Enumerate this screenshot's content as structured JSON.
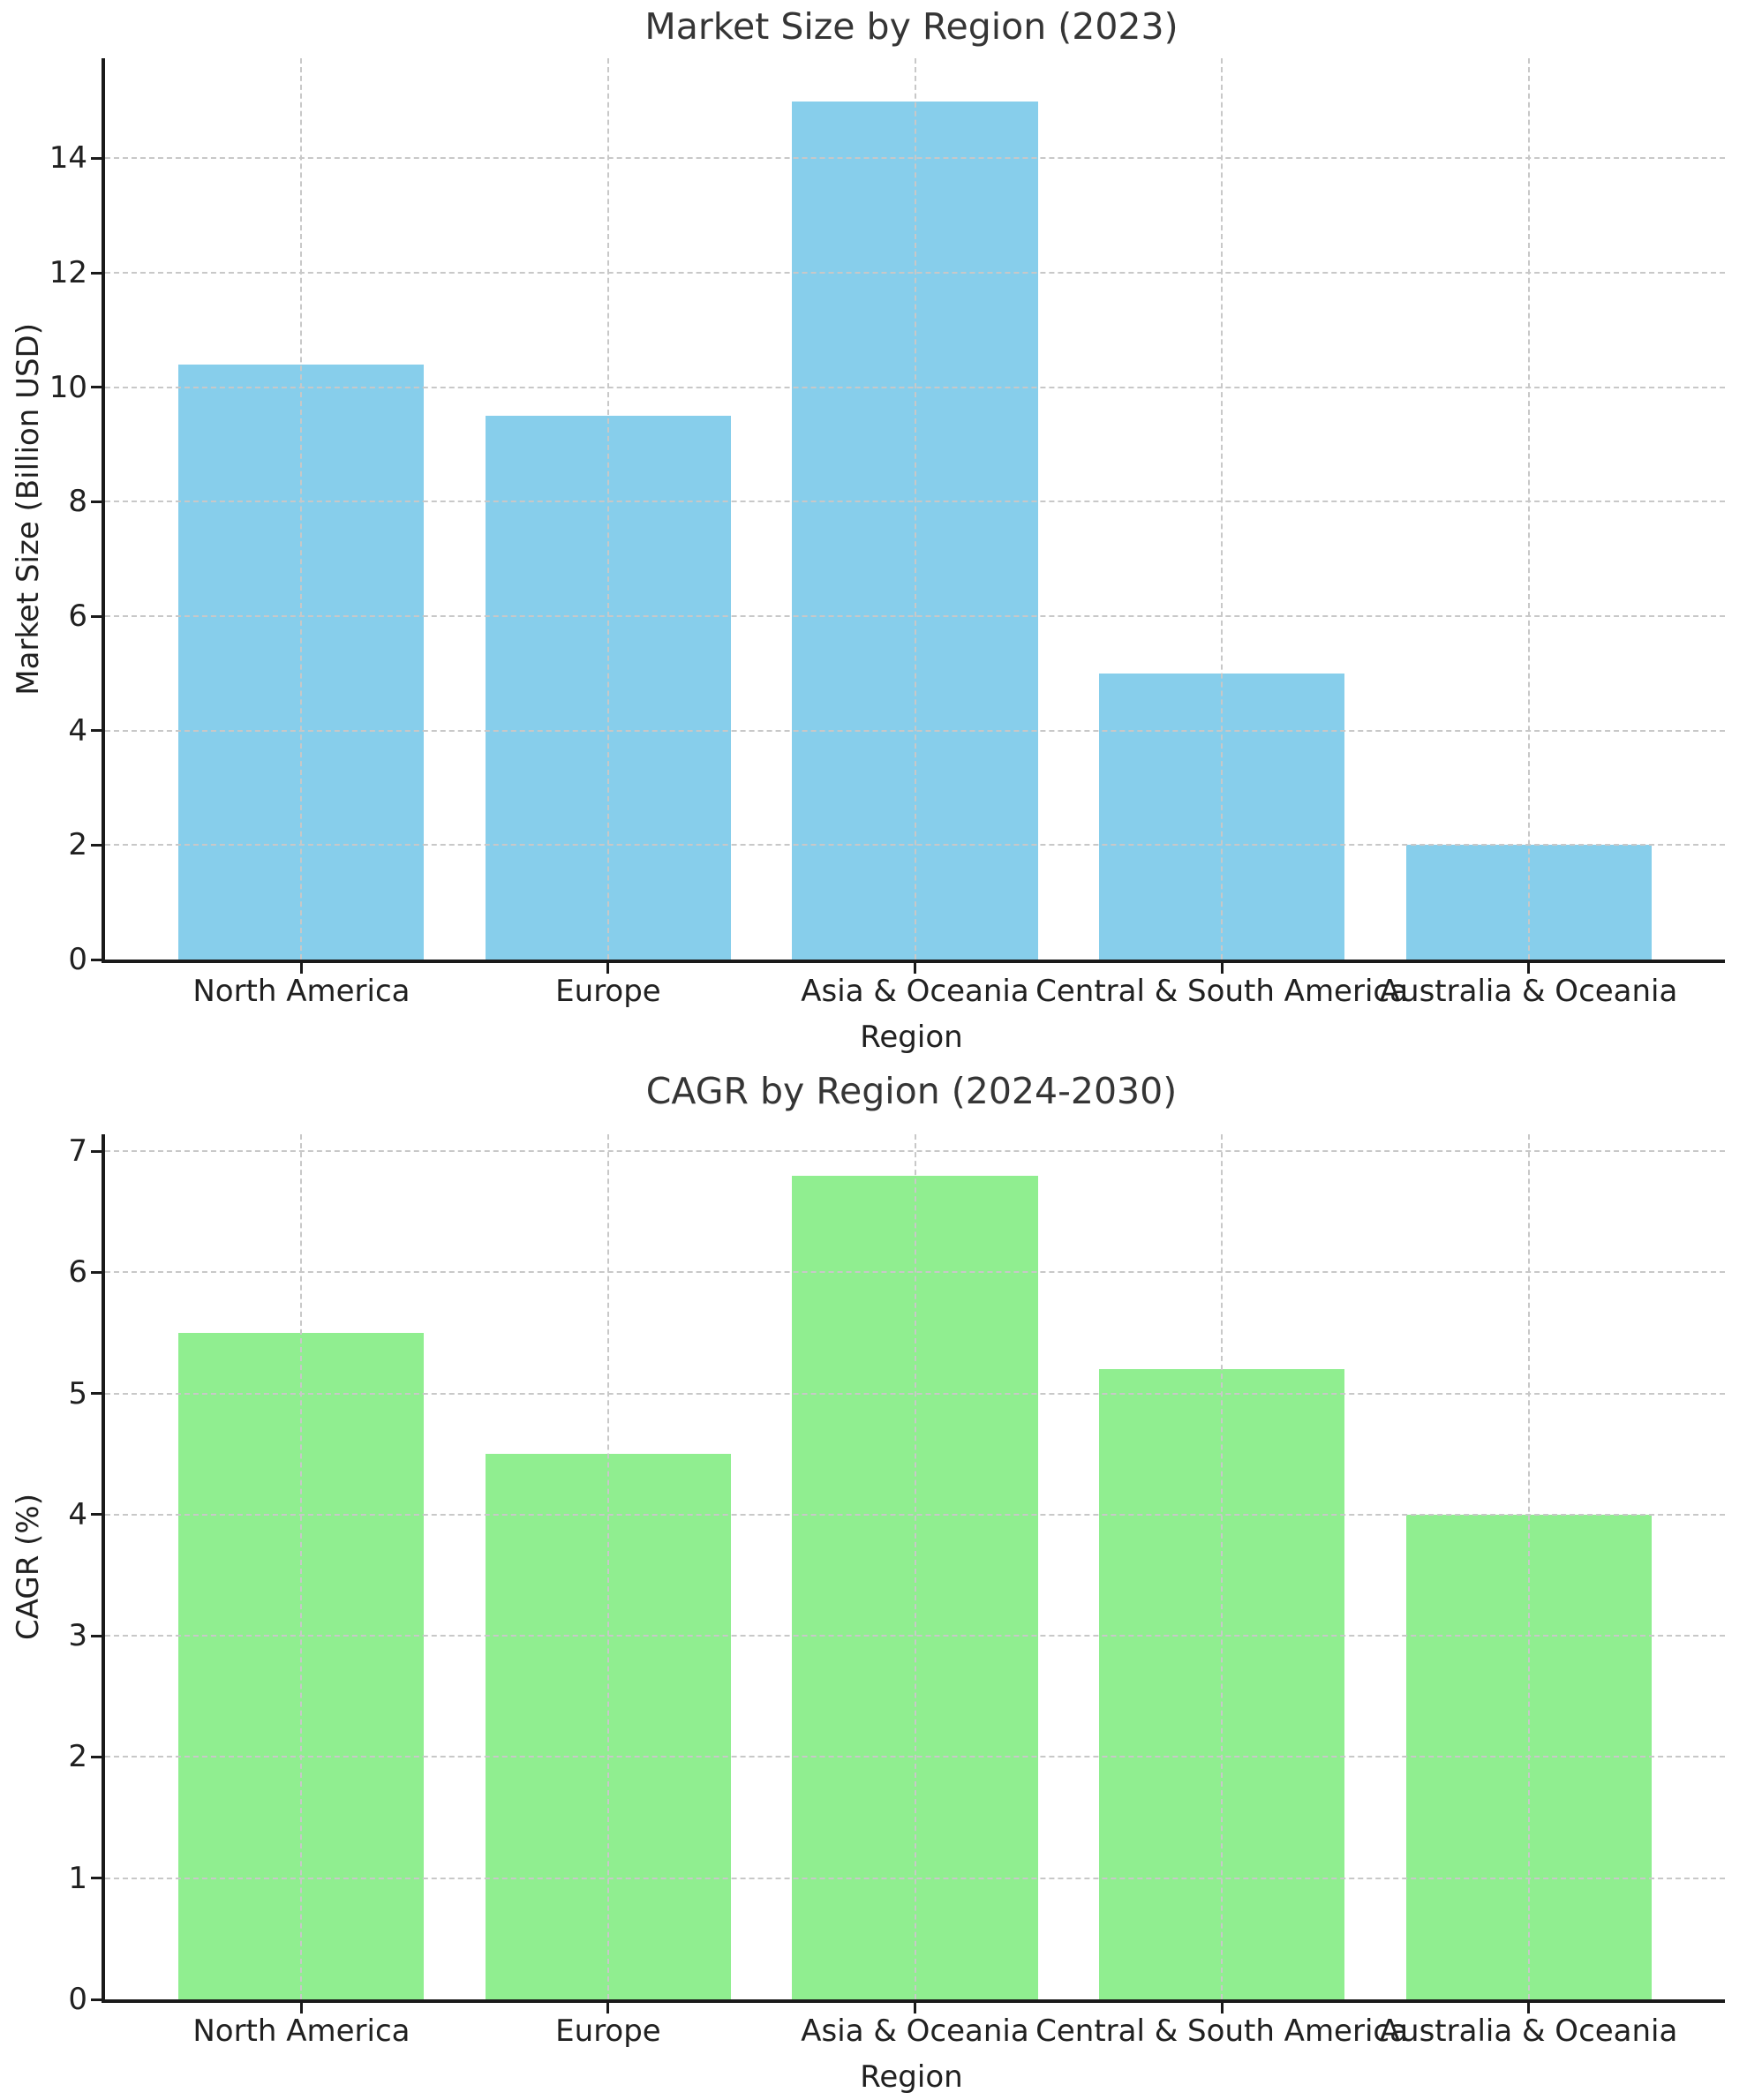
{
  "figure": {
    "background": "#ffffff"
  },
  "colors": {
    "grid": "#c8c8c8",
    "spine": "#1a1a1a",
    "text": "#202020",
    "title": "#353535"
  },
  "chart_data": [
    {
      "type": "bar",
      "title": "Market Size by Region (2023)",
      "xlabel": "Region",
      "ylabel": "Market Size (Billion USD)",
      "categories": [
        "North America",
        "Europe",
        "Asia & Oceania",
        "Central & South America",
        "Australia & Oceania"
      ],
      "values": [
        10.4,
        9.5,
        15.0,
        5.0,
        2.0
      ],
      "bar_color": "#87CEEB",
      "yticks": [
        0,
        2,
        4,
        6,
        8,
        10,
        12,
        14
      ],
      "ylim": [
        0,
        15.75
      ],
      "grid": "dashed, both axes, drawn above bars",
      "legend_position": "none"
    },
    {
      "type": "bar",
      "title": "CAGR by Region (2024-2030)",
      "xlabel": "Region",
      "ylabel": "CAGR (%)",
      "categories": [
        "North America",
        "Europe",
        "Asia & Oceania",
        "Central & South America",
        "Australia & Oceania"
      ],
      "values": [
        5.5,
        4.5,
        6.8,
        5.2,
        4.0
      ],
      "bar_color": "#90EE90",
      "yticks": [
        0,
        1,
        2,
        3,
        4,
        5,
        6,
        7
      ],
      "ylim": [
        0,
        7.14
      ],
      "grid": "dashed, both axes, drawn above bars",
      "legend_position": "none"
    }
  ]
}
